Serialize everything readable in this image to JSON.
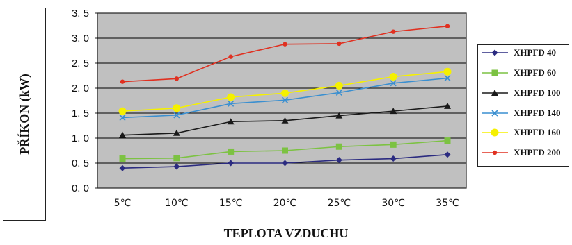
{
  "chart_data": {
    "type": "line",
    "title": "",
    "xlabel": "TEPLOTA VZDUCHU",
    "ylabel": "PŘÍKON (kW)",
    "categories": [
      "5℃",
      "10℃",
      "15℃",
      "20℃",
      "25℃",
      "30℃",
      "35℃"
    ],
    "ylim": [
      0,
      3.5
    ],
    "yticks": [
      "0. 0",
      "0. 5",
      "1. 0",
      "1. 5",
      "2. 0",
      "2. 5",
      "3. 0",
      "3. 5"
    ],
    "ytick_values": [
      0,
      0.5,
      1.0,
      1.5,
      2.0,
      2.5,
      3.0,
      3.5
    ],
    "grid": true,
    "legend_position": "right",
    "background": "#c0c0c0",
    "series": [
      {
        "name": "XHPFD 40",
        "color": "#2b2b80",
        "marker": "diamond",
        "values": [
          0.4,
          0.43,
          0.5,
          0.5,
          0.56,
          0.59,
          0.67
        ]
      },
      {
        "name": "XHPFD 60",
        "color": "#7cc242",
        "marker": "square",
        "values": [
          0.59,
          0.6,
          0.73,
          0.75,
          0.83,
          0.87,
          0.95
        ]
      },
      {
        "name": "XHPFD 100",
        "color": "#1a1a1a",
        "marker": "triangle",
        "values": [
          1.06,
          1.1,
          1.33,
          1.35,
          1.45,
          1.54,
          1.64
        ]
      },
      {
        "name": "XHPFD 140",
        "color": "#3a8fd0",
        "marker": "x",
        "values": [
          1.41,
          1.46,
          1.69,
          1.76,
          1.91,
          2.1,
          2.2
        ]
      },
      {
        "name": "XHPFD 160",
        "color": "#f5f000",
        "marker": "circle",
        "values": [
          1.54,
          1.6,
          1.82,
          1.9,
          2.05,
          2.23,
          2.33
        ]
      },
      {
        "name": "XHPFD 200",
        "color": "#e03020",
        "marker": "dot",
        "values": [
          2.13,
          2.19,
          2.63,
          2.88,
          2.89,
          3.13,
          3.24
        ]
      }
    ]
  }
}
